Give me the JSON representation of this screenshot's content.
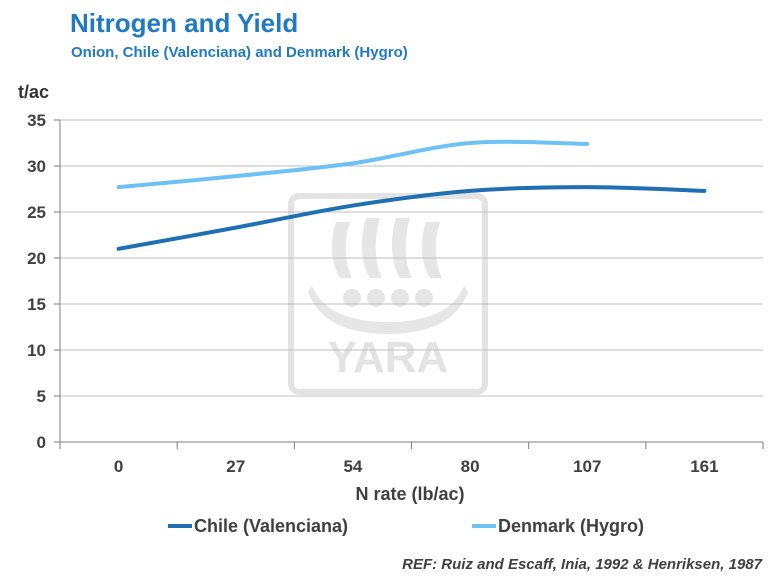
{
  "header": {
    "title": "Nitrogen and Yield",
    "subtitle": "Onion, Chile (Valenciana) and Denmark (Hygro)"
  },
  "reference": "REF: Ruiz and Escaff, Inia, 1992 & Henriksen, 1987",
  "watermark": {
    "text": "YARA"
  },
  "colors": {
    "chile": "#1f6fb2",
    "denmark": "#6ec1f4",
    "title": "#1f7ac3",
    "watermark": "#e0e0e0"
  },
  "chart_data": {
    "type": "line",
    "ylabel_unit": "t/ac",
    "xlabel": "N rate (lb/ac)",
    "categories": [
      "0",
      "27",
      "54",
      "80",
      "107",
      "161"
    ],
    "yticks": [
      "0",
      "5",
      "10",
      "15",
      "20",
      "25",
      "30",
      "35"
    ],
    "ylim": [
      0,
      35
    ],
    "grid": true,
    "legend_position": "bottom",
    "series": [
      {
        "name": "Chile (Valenciana)",
        "color": "#1f6fb2",
        "values": [
          21.0,
          23.3,
          25.7,
          27.3,
          27.7,
          27.3
        ]
      },
      {
        "name": "Denmark (Hygro)",
        "color": "#6ec1f4",
        "values": [
          27.7,
          28.9,
          30.3,
          32.5,
          32.4,
          null
        ]
      }
    ]
  }
}
